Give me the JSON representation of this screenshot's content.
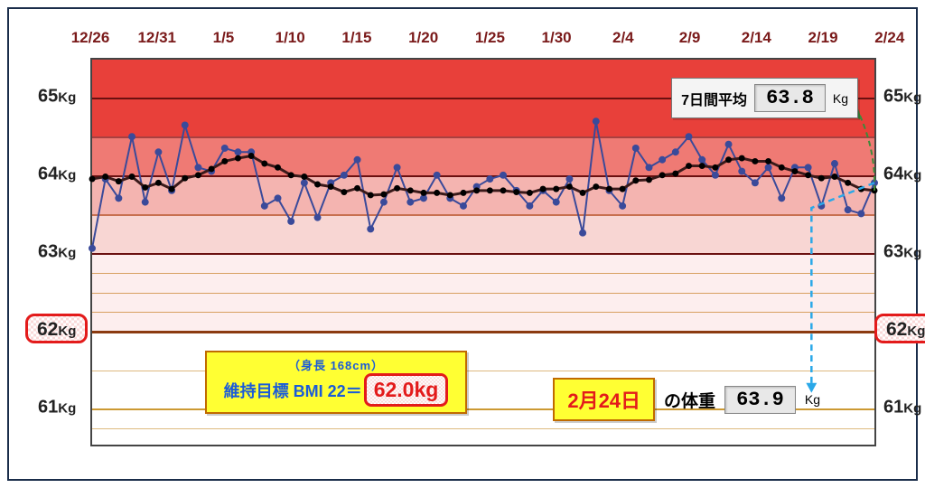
{
  "chart": {
    "type": "line",
    "ylim": [
      60.5,
      65.5
    ],
    "yticks": [
      61,
      62,
      63,
      64,
      65
    ],
    "ytick_labels": [
      "61Kg",
      "62Kg",
      "63Kg",
      "64Kg",
      "65Kg"
    ],
    "xtick_labels": [
      "12/26",
      "12/31",
      "1/5",
      "1/10",
      "1/15",
      "1/20",
      "1/25",
      "1/30",
      "2/4",
      "2/9",
      "2/14",
      "2/19",
      "2/24"
    ],
    "target_value": 62,
    "target_label_main": "62",
    "target_label_unit": "Kg",
    "bands": [
      {
        "from": 64.5,
        "to": 65.5,
        "color": "#e8403a",
        "opacity": 1
      },
      {
        "from": 64.0,
        "to": 64.5,
        "color": "#ef7a74",
        "opacity": 1
      },
      {
        "from": 63.5,
        "to": 64.0,
        "color": "#f4b4b0",
        "opacity": 1
      },
      {
        "from": 63.0,
        "to": 63.5,
        "color": "#f8d6d3",
        "opacity": 1
      },
      {
        "from": 62.0,
        "to": 63.0,
        "color": "#fdeeee",
        "opacity": 1
      }
    ],
    "gridlines": [
      {
        "y": 65,
        "color": "#6b1010",
        "width": 2
      },
      {
        "y": 64.5,
        "color": "#a84040",
        "width": 1.5
      },
      {
        "y": 64,
        "color": "#6b1010",
        "width": 2
      },
      {
        "y": 63.5,
        "color": "#c87050",
        "width": 1.5
      },
      {
        "y": 63,
        "color": "#6b1010",
        "width": 2.5
      },
      {
        "y": 62.75,
        "color": "#d8a060",
        "width": 1
      },
      {
        "y": 62.5,
        "color": "#d8a060",
        "width": 1
      },
      {
        "y": 62.25,
        "color": "#d8a060",
        "width": 1
      },
      {
        "y": 62,
        "color": "#8b3a10",
        "width": 3
      },
      {
        "y": 61.5,
        "color": "#ddb880",
        "width": 1
      },
      {
        "y": 61,
        "color": "#cc9933",
        "width": 2
      },
      {
        "y": 60.75,
        "color": "#ddbb80",
        "width": 1
      }
    ],
    "daily_series": {
      "color": "#3a4a9a",
      "marker_color": "#3a4a9a",
      "marker_size": 4,
      "line_width": 2,
      "values": [
        63.05,
        63.95,
        63.7,
        64.5,
        63.65,
        64.3,
        63.8,
        64.65,
        64.1,
        64.05,
        64.35,
        64.3,
        64.3,
        63.6,
        63.7,
        63.4,
        63.9,
        63.45,
        63.9,
        64.0,
        64.2,
        63.3,
        63.65,
        64.1,
        63.65,
        63.7,
        64.0,
        63.7,
        63.6,
        63.85,
        63.95,
        64.0,
        63.8,
        63.6,
        63.8,
        63.65,
        63.95,
        63.25,
        64.7,
        63.8,
        63.6,
        64.35,
        64.1,
        64.2,
        64.3,
        64.5,
        64.2,
        64.0,
        64.4,
        64.05,
        63.9,
        64.1,
        63.7,
        64.1,
        64.1,
        63.6,
        64.15,
        63.55,
        63.5,
        63.9
      ]
    },
    "avg_series": {
      "color": "#3a1a1a",
      "marker_color": "#000000",
      "marker_size": 3.5,
      "line_width": 3,
      "values": [
        63.95,
        63.98,
        63.92,
        63.98,
        63.84,
        63.9,
        63.82,
        63.96,
        64.0,
        64.08,
        64.18,
        64.22,
        64.25,
        64.15,
        64.1,
        64.0,
        63.98,
        63.88,
        63.85,
        63.78,
        63.83,
        63.74,
        63.75,
        63.83,
        63.8,
        63.77,
        63.77,
        63.74,
        63.77,
        63.8,
        63.8,
        63.8,
        63.78,
        63.77,
        63.82,
        63.82,
        63.85,
        63.77,
        63.85,
        63.82,
        63.82,
        63.93,
        63.94,
        64.0,
        64.02,
        64.12,
        64.12,
        64.1,
        64.2,
        64.22,
        64.18,
        64.18,
        64.1,
        64.05,
        64.0,
        63.96,
        63.98,
        63.9,
        63.82,
        63.8
      ]
    },
    "callout_arrow": {
      "color": "#2aa8e8",
      "style": "dashed",
      "width": 2.5
    },
    "avg_callout_arc": {
      "color": "#3a8a3a",
      "style": "dashed",
      "width": 2
    }
  },
  "avg_box": {
    "label": "7日間平均",
    "value": "63.8",
    "unit": "Kg"
  },
  "bmi_box": {
    "subtitle": "（身長  168cm）",
    "label": "維持目標 BMI 22＝",
    "value": "62.0kg"
  },
  "today_box": {
    "date": "2月24日",
    "label": "の体重",
    "value": "63.9",
    "unit": "Kg"
  }
}
